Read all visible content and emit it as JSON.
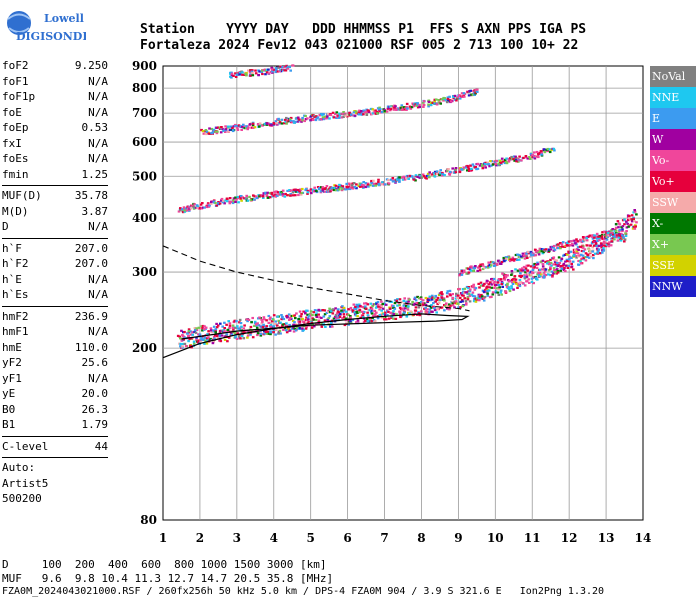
{
  "logo": {
    "line1": "Lowell",
    "line2": "DIGISONDE"
  },
  "header": {
    "row1": "Station    YYYY DAY   DDD HHMMSS P1  FFS S AXN PPS IGA PS",
    "row2": "Fortaleza 2024 Fev12 043 021000 RSF 005 2 713 100 10+ 22"
  },
  "params": [
    {
      "label": "foF2",
      "value": "9.250"
    },
    {
      "label": "foF1",
      "value": "N/A"
    },
    {
      "label": "foF1p",
      "value": "N/A"
    },
    {
      "label": "foE",
      "value": "N/A"
    },
    {
      "label": "foEp",
      "value": "0.53"
    },
    {
      "label": "fxI",
      "value": "N/A"
    },
    {
      "label": "foEs",
      "value": "N/A"
    },
    {
      "label": "fmin",
      "value": "1.25"
    },
    {
      "sep": true
    },
    {
      "label": "MUF(D)",
      "value": "35.78"
    },
    {
      "label": "M(D)",
      "value": "3.87"
    },
    {
      "label": "D",
      "value": "N/A"
    },
    {
      "sep": true
    },
    {
      "label": "h`F",
      "value": "207.0"
    },
    {
      "label": "h`F2",
      "value": "207.0"
    },
    {
      "label": "h`E",
      "value": "N/A"
    },
    {
      "label": "h`Es",
      "value": "N/A"
    },
    {
      "sep": true
    },
    {
      "label": "hmF2",
      "value": "236.9"
    },
    {
      "label": "hmF1",
      "value": "N/A"
    },
    {
      "label": "hmE",
      "value": "110.0"
    },
    {
      "label": "yF2",
      "value": "25.6"
    },
    {
      "label": "yF1",
      "value": "N/A"
    },
    {
      "label": "yE",
      "value": "20.0"
    },
    {
      "label": "B0",
      "value": "26.3"
    },
    {
      "label": "B1",
      "value": "1.79"
    },
    {
      "sep": true
    },
    {
      "label": "C-level",
      "value": "44"
    },
    {
      "sep": true
    },
    {
      "text": "Auto:"
    },
    {
      "text": "Artist5"
    },
    {
      "text": "500200"
    }
  ],
  "legend": [
    {
      "label": "NoVal",
      "color": "#808080"
    },
    {
      "label": "NNE",
      "color": "#1ec8f0"
    },
    {
      "label": "E",
      "color": "#3c9bf0"
    },
    {
      "label": "W",
      "color": "#a000a0"
    },
    {
      "label": "Vo-",
      "color": "#f0469b"
    },
    {
      "label": "Vo+",
      "color": "#e6003c"
    },
    {
      "label": "SSW",
      "color": "#f5aaaa"
    },
    {
      "label": "X-",
      "color": "#007800"
    },
    {
      "label": "X+",
      "color": "#78c850"
    },
    {
      "label": "SSE",
      "color": "#d2d200"
    },
    {
      "label": "NNW",
      "color": "#1e1ec8"
    }
  ],
  "footer": {
    "line1": "D     100  200  400  600  800 1000 1500 3000 [km]",
    "line2": "MUF   9.6  9.8 10.4 11.3 12.7 14.7 20.5 35.8 [MHz]",
    "line3": "FZA0M_2024043021000.RSF / 260fx256h 50 kHz 5.0 km / DPS-4 FZA0M 904 / 3.9 S 321.6 E   Ion2Png 1.3.20"
  },
  "chart_data": {
    "type": "scatter",
    "title": "",
    "xlabel": "",
    "ylabel": "",
    "xlim": [
      1,
      14
    ],
    "ylim": [
      80,
      900
    ],
    "yscale": "log",
    "xticks": [
      1,
      2,
      3,
      4,
      5,
      6,
      7,
      8,
      9,
      10,
      11,
      12,
      13,
      14
    ],
    "yticks": [
      80,
      200,
      300,
      400,
      500,
      600,
      700,
      800,
      900
    ],
    "grid": true,
    "traces": [
      {
        "name": "F2 trace",
        "points": [
          [
            1.4,
            210
          ],
          [
            2,
            215
          ],
          [
            3,
            222
          ],
          [
            4,
            228
          ],
          [
            5,
            234
          ],
          [
            6,
            240
          ],
          [
            7,
            246
          ],
          [
            8,
            252
          ],
          [
            9,
            262
          ],
          [
            9.5,
            270
          ],
          [
            10,
            280
          ],
          [
            11,
            300
          ],
          [
            12,
            320
          ],
          [
            12.6,
            340
          ],
          [
            13,
            360
          ],
          [
            13.4,
            380
          ],
          [
            13.8,
            400
          ]
        ]
      },
      {
        "name": "F2 2-hop",
        "points": [
          [
            1.4,
            420
          ],
          [
            2,
            430
          ],
          [
            3,
            445
          ],
          [
            4,
            456
          ],
          [
            5,
            466
          ],
          [
            6,
            476
          ],
          [
            7,
            488
          ],
          [
            8,
            502
          ],
          [
            9,
            520
          ],
          [
            10,
            540
          ],
          [
            11,
            562
          ],
          [
            11.6,
            585
          ]
        ]
      },
      {
        "name": "F2 3-hop",
        "points": [
          [
            2,
            635
          ],
          [
            3,
            652
          ],
          [
            4,
            670
          ],
          [
            5,
            688
          ],
          [
            6,
            700
          ],
          [
            7,
            716
          ],
          [
            8,
            738
          ],
          [
            8.8,
            760
          ],
          [
            9.5,
            790
          ]
        ]
      },
      {
        "name": "F2 4-hop",
        "points": [
          [
            2.8,
            860
          ],
          [
            3.5,
            875
          ],
          [
            4,
            885
          ],
          [
            4.5,
            895
          ]
        ]
      },
      {
        "name": "Spread F",
        "points": [
          [
            9,
            300
          ],
          [
            10,
            318
          ],
          [
            10.8,
            330
          ],
          [
            13,
            370
          ],
          [
            13.5,
            360
          ]
        ]
      }
    ],
    "profile": {
      "name": "electron density profile",
      "solid": [
        [
          1,
          190
        ],
        [
          2,
          205
        ],
        [
          3,
          215
        ],
        [
          4,
          222
        ],
        [
          5,
          228
        ],
        [
          6,
          233
        ],
        [
          7,
          237
        ],
        [
          8,
          240
        ],
        [
          8.7,
          238
        ],
        [
          9.25,
          236.9
        ],
        [
          9.1,
          233
        ],
        [
          8.4,
          231
        ],
        [
          7,
          229
        ],
        [
          5,
          226
        ],
        [
          3,
          219
        ],
        [
          1.5,
          210
        ]
      ],
      "dashed": [
        [
          1,
          345
        ],
        [
          2,
          318
        ],
        [
          3,
          300
        ],
        [
          4,
          287
        ],
        [
          5,
          276
        ],
        [
          6,
          267
        ],
        [
          7,
          258
        ],
        [
          8,
          251
        ],
        [
          9,
          247
        ],
        [
          9.3,
          244
        ]
      ]
    }
  }
}
